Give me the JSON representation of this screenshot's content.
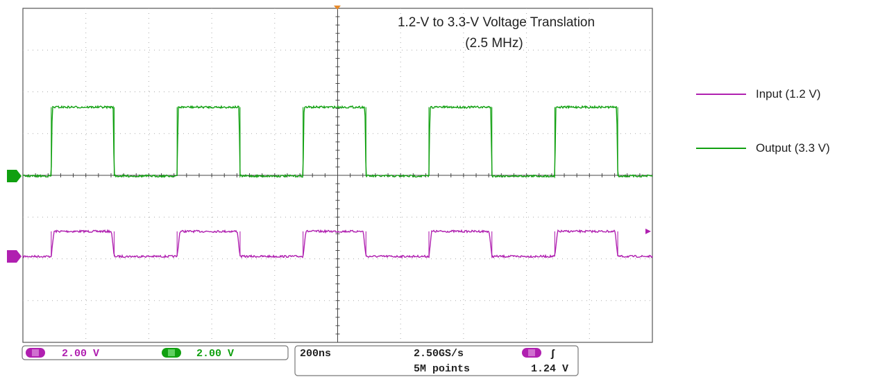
{
  "chart_data": {
    "type": "line",
    "title": "1.2-V to 3.3-V Voltage Translation",
    "subtitle": "(2.5 MHz)",
    "grid": true,
    "legend_position": "right",
    "time_per_div_ns": 200,
    "divisions": {
      "x": 10,
      "y": 8
    },
    "xlim_ns": [
      0,
      2000
    ],
    "period_ns": 400,
    "series": [
      {
        "name": "Input (1.2 V)",
        "color": "#b020b0",
        "volts_per_div": 2.0,
        "high_v": 1.2,
        "low_v": 0.0,
        "rising_edges_ns": [
          90,
          490,
          890,
          1290,
          1690
        ],
        "falling_edges_ns": [
          290,
          690,
          1090,
          1490,
          1890
        ]
      },
      {
        "name": "Output (3.3 V)",
        "color": "#10a010",
        "volts_per_div": 2.0,
        "high_v": 3.3,
        "low_v": 0.0,
        "rising_edges_ns": [
          90,
          490,
          890,
          1290,
          1690
        ],
        "falling_edges_ns": [
          290,
          690,
          1090,
          1490,
          1890
        ]
      }
    ]
  },
  "readout": {
    "ch1_scale": "2.00 V",
    "ch2_scale": "2.00 V",
    "timebase": "200ns",
    "sample_rate": "2.50GS/s",
    "record_length": "5M points",
    "trigger_level": "1.24 V",
    "trigger_slope_glyph": "ʃ"
  }
}
